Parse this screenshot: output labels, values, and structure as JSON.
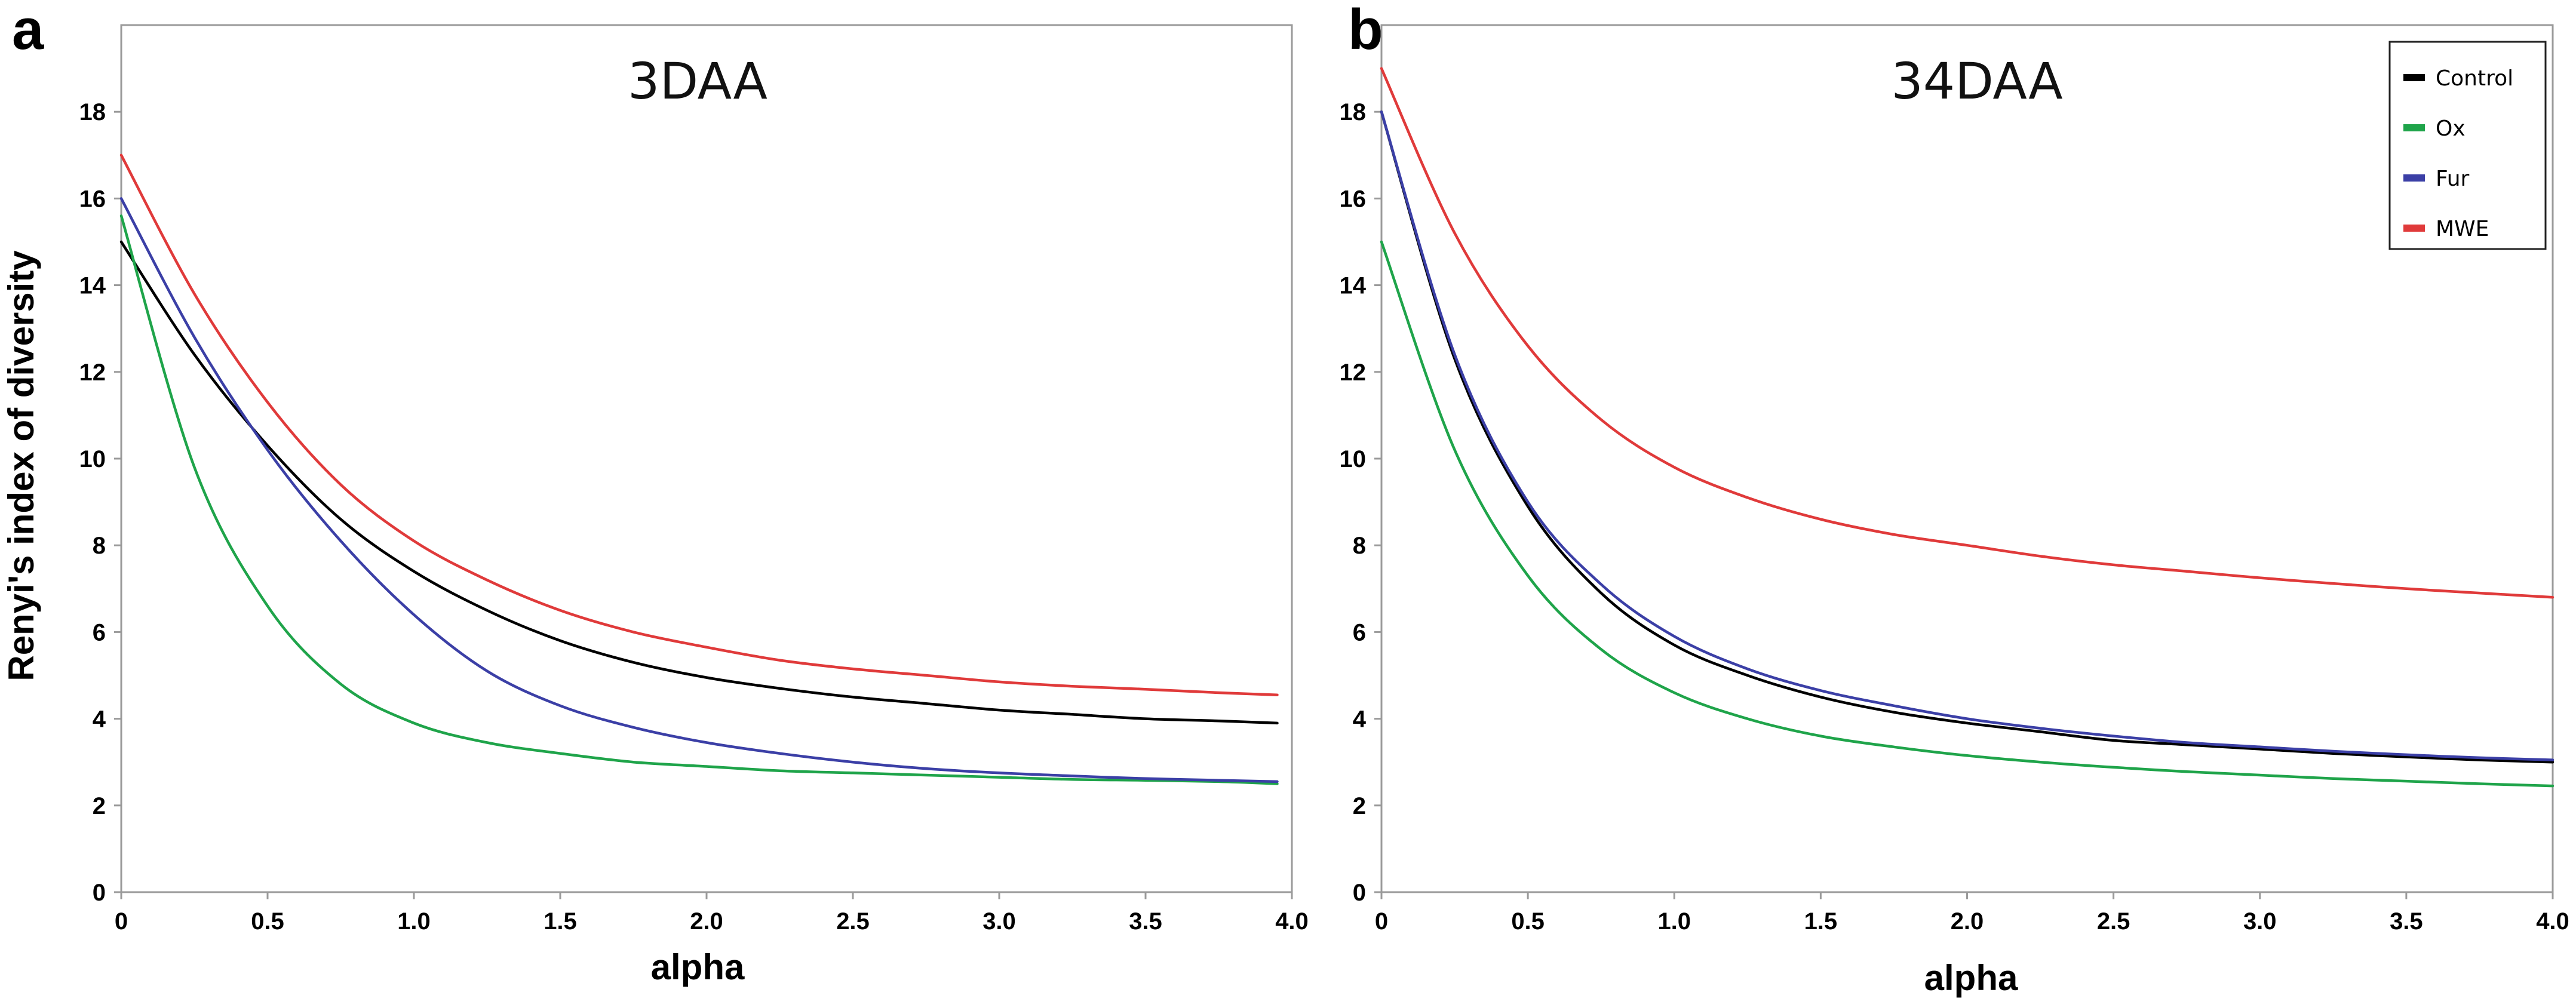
{
  "figure": {
    "y_axis_label": "Renyi's index of diversity"
  },
  "legend": {
    "entries": [
      {
        "name": "Control",
        "color": "#000000"
      },
      {
        "name": "Ox",
        "color": "#1fa44a"
      },
      {
        "name": "Fur",
        "color": "#3b3fa6"
      },
      {
        "name": "MWE",
        "color": "#e03a3a"
      }
    ]
  },
  "chart_data": [
    {
      "type": "line",
      "panel": "a",
      "title": "3DAA",
      "xlabel": "alpha",
      "ylabel": "Renyi's index of diversity",
      "xlim": [
        0,
        4.0
      ],
      "ylim": [
        0,
        20
      ],
      "x_ticks": [
        "0",
        "0.5",
        "1.0",
        "1.5",
        "2.0",
        "2.5",
        "3.0",
        "3.5",
        "4.0"
      ],
      "y_ticks": [
        "0",
        "2",
        "4",
        "6",
        "8",
        "10",
        "12",
        "14",
        "16",
        "18"
      ],
      "x": [
        0,
        0.25,
        0.5,
        0.75,
        1.0,
        1.25,
        1.5,
        1.75,
        2.0,
        2.25,
        2.5,
        2.75,
        3.0,
        3.25,
        3.5,
        3.75,
        3.95
      ],
      "series": [
        {
          "name": "Control",
          "color": "#000000",
          "values": [
            15.0,
            12.4,
            10.3,
            8.6,
            7.4,
            6.5,
            5.8,
            5.3,
            4.95,
            4.7,
            4.5,
            4.35,
            4.2,
            4.1,
            4.0,
            3.95,
            3.9
          ]
        },
        {
          "name": "Ox",
          "color": "#1fa44a",
          "values": [
            15.6,
            9.8,
            6.6,
            4.8,
            3.9,
            3.45,
            3.2,
            3.0,
            2.9,
            2.8,
            2.75,
            2.7,
            2.65,
            2.6,
            2.58,
            2.55,
            2.5
          ]
        },
        {
          "name": "Fur",
          "color": "#3b3fa6",
          "values": [
            16.0,
            12.8,
            10.2,
            8.1,
            6.4,
            5.1,
            4.3,
            3.8,
            3.45,
            3.2,
            3.0,
            2.85,
            2.75,
            2.68,
            2.62,
            2.58,
            2.55
          ]
        },
        {
          "name": "MWE",
          "color": "#e03a3a",
          "values": [
            17.0,
            13.8,
            11.3,
            9.4,
            8.1,
            7.2,
            6.5,
            6.0,
            5.65,
            5.35,
            5.15,
            5.0,
            4.85,
            4.75,
            4.68,
            4.6,
            4.55
          ]
        }
      ]
    },
    {
      "type": "line",
      "panel": "b",
      "title": "34DAA",
      "xlabel": "alpha",
      "ylabel": "Renyi's index of diversity",
      "xlim": [
        0,
        4.0
      ],
      "ylim": [
        0,
        20
      ],
      "x_ticks": [
        "0",
        "0.5",
        "1.0",
        "1.5",
        "2.0",
        "2.5",
        "3.0",
        "3.5",
        "4.0"
      ],
      "y_ticks": [
        "0",
        "2",
        "4",
        "6",
        "8",
        "10",
        "12",
        "14",
        "16",
        "18"
      ],
      "legend_position": "top-right",
      "x": [
        0,
        0.25,
        0.5,
        0.75,
        1.0,
        1.25,
        1.5,
        1.75,
        2.0,
        2.25,
        2.5,
        2.75,
        3.0,
        3.25,
        3.5,
        3.75,
        4.0
      ],
      "series": [
        {
          "name": "Control",
          "color": "#000000",
          "values": [
            18.0,
            12.3,
            8.9,
            6.9,
            5.7,
            5.0,
            4.5,
            4.15,
            3.9,
            3.7,
            3.5,
            3.4,
            3.3,
            3.2,
            3.12,
            3.05,
            3.0
          ]
        },
        {
          "name": "Ox",
          "color": "#1fa44a",
          "values": [
            15.0,
            10.2,
            7.3,
            5.6,
            4.6,
            4.0,
            3.6,
            3.35,
            3.15,
            3.0,
            2.88,
            2.78,
            2.7,
            2.62,
            2.56,
            2.5,
            2.45
          ]
        },
        {
          "name": "Fur",
          "color": "#3b3fa6",
          "values": [
            18.0,
            12.4,
            9.0,
            7.1,
            5.9,
            5.15,
            4.65,
            4.3,
            4.0,
            3.78,
            3.6,
            3.45,
            3.35,
            3.25,
            3.17,
            3.1,
            3.05
          ]
        },
        {
          "name": "MWE",
          "color": "#e03a3a",
          "values": [
            19.0,
            15.2,
            12.6,
            10.9,
            9.8,
            9.1,
            8.6,
            8.25,
            8.0,
            7.75,
            7.55,
            7.4,
            7.25,
            7.12,
            7.0,
            6.9,
            6.8
          ]
        }
      ]
    }
  ]
}
